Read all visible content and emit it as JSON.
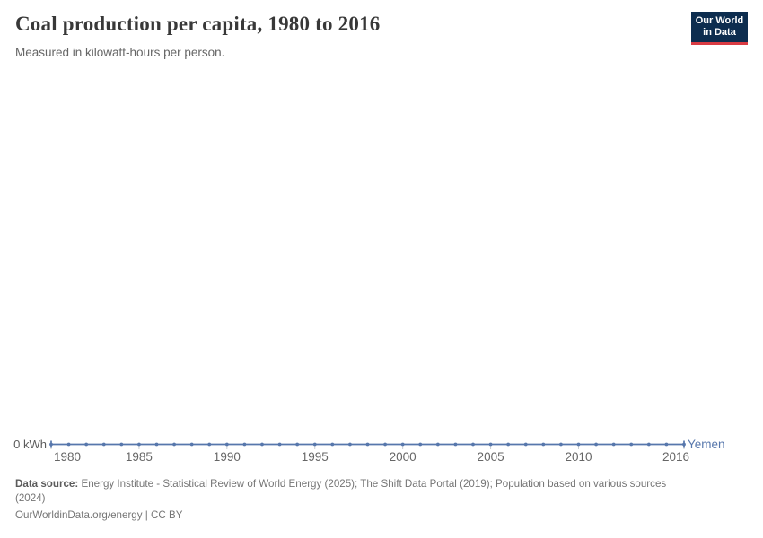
{
  "header": {
    "title": "Coal production per capita, 1980 to 2016",
    "subtitle": "Measured in kilowatt-hours per person."
  },
  "logo": {
    "line1": "Our World",
    "line2": "in Data"
  },
  "chart_data": {
    "type": "line",
    "title": "Coal production per capita, 1980 to 2016",
    "subtitle": "Measured in kilowatt-hours per person.",
    "unit": "kilowatt-hours per person",
    "x": [
      1980,
      1981,
      1982,
      1983,
      1984,
      1985,
      1986,
      1987,
      1988,
      1989,
      1990,
      1991,
      1992,
      1993,
      1994,
      1995,
      1996,
      1997,
      1998,
      1999,
      2000,
      2001,
      2002,
      2003,
      2004,
      2005,
      2006,
      2007,
      2008,
      2009,
      2010,
      2011,
      2012,
      2013,
      2014,
      2015,
      2016
    ],
    "series": [
      {
        "name": "Yemen",
        "values": [
          0,
          0,
          0,
          0,
          0,
          0,
          0,
          0,
          0,
          0,
          0,
          0,
          0,
          0,
          0,
          0,
          0,
          0,
          0,
          0,
          0,
          0,
          0,
          0,
          0,
          0,
          0,
          0,
          0,
          0,
          0,
          0,
          0,
          0,
          0,
          0,
          0
        ]
      }
    ],
    "x_ticks": [
      1980,
      1985,
      1990,
      1995,
      2000,
      2005,
      2010,
      2016
    ],
    "y_zero_label": "0 kWh",
    "xlabel": "",
    "ylabel": "kWh",
    "ylim": [
      0,
      0
    ],
    "grid": false,
    "legend_position": "end-of-line"
  },
  "colors": {
    "line": "#5777ac",
    "entity_label": "#5777ac",
    "axis_tick": "#c8ccd1",
    "logo_bg": "#0d2d4f",
    "logo_accent": "#d93b43"
  },
  "footer": {
    "source_bold": "Data source:",
    "source_rest": " Energy Institute - Statistical Review of World Energy (2025); The Shift Data Portal (2019); Population based on various sources",
    "source_wrap": "(2024)",
    "license": "OurWorldinData.org/energy | CC BY"
  }
}
